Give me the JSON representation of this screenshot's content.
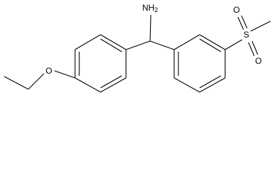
{
  "nodes": [
    {
      "label": "NH",
      "subscript": "2"
    },
    {
      "label": "O"
    },
    {
      "label": "S"
    },
    {
      "label": "O"
    },
    {
      "label": "O"
    }
  ]
}
